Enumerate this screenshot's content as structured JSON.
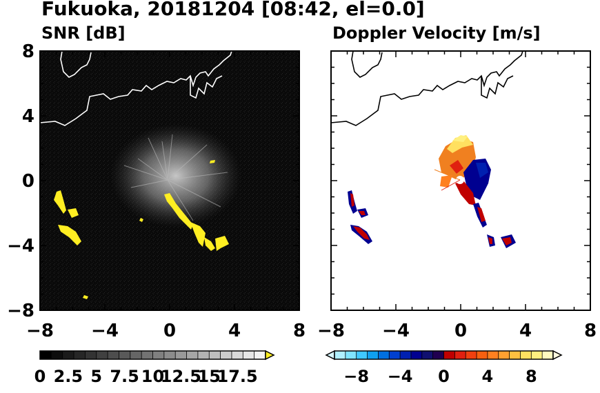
{
  "title": "Fukuoka, 20181204 [08:42, el=0.0]",
  "chart_data": [
    {
      "type": "heatmap",
      "title": "SNR [dB]",
      "xlim": [
        -8,
        8
      ],
      "ylim": [
        -8,
        8
      ],
      "xticks": [
        "−8",
        "−4",
        "0",
        "4",
        "8"
      ],
      "yticks": [
        "8",
        "4",
        "0",
        "−4",
        "−8"
      ],
      "background": "#0a0a0a",
      "coastline_color": "#ffffff",
      "echo_color": "#ffee22",
      "colorbar": {
        "ticks": [
          "0",
          "2.5",
          "5",
          "7.5",
          "10",
          "12.5",
          "15",
          "17.5"
        ],
        "tick_values": [
          0,
          2.5,
          5,
          7.5,
          10,
          12.5,
          15,
          17.5
        ],
        "range": [
          0,
          20
        ],
        "extend": "max",
        "colors": [
          "#000000",
          "#0d0d0d",
          "#1a1a1a",
          "#262626",
          "#333333",
          "#404040",
          "#4d4d4d",
          "#595959",
          "#666666",
          "#737373",
          "#808080",
          "#8c8c8c",
          "#999999",
          "#a6a6a6",
          "#b3b3b3",
          "#bfbfbf",
          "#cccccc",
          "#d9d9d9",
          "#e6e6e6",
          "#f2f2f2"
        ],
        "over_color": "#ffee22"
      }
    },
    {
      "type": "heatmap",
      "title": "Doppler Velocity [m/s]",
      "xlim": [
        -8,
        8
      ],
      "ylim": [
        -8,
        8
      ],
      "xticks": [
        "−8",
        "−4",
        "0",
        "4",
        "8"
      ],
      "yticks": [],
      "background": "#ffffff",
      "coastline_color": "#000000",
      "colorbar": {
        "ticks": [
          "−8",
          "−4",
          "0",
          "4",
          "8"
        ],
        "tick_values": [
          -8,
          -4,
          0,
          4,
          8
        ],
        "range": [
          -10,
          10
        ],
        "extend": "both",
        "colors": [
          "#b0f0ff",
          "#80e4ff",
          "#40c8ff",
          "#10a0f0",
          "#0070e0",
          "#0040d0",
          "#0020b0",
          "#000090",
          "#101070",
          "#200050",
          "#c00000",
          "#e02010",
          "#f04010",
          "#f86010",
          "#ff8020",
          "#ffa030",
          "#ffc040",
          "#ffe060",
          "#fff080",
          "#fffbc0"
        ],
        "under_color": "#d8f8ff",
        "over_color": "#fffbe0"
      }
    }
  ]
}
